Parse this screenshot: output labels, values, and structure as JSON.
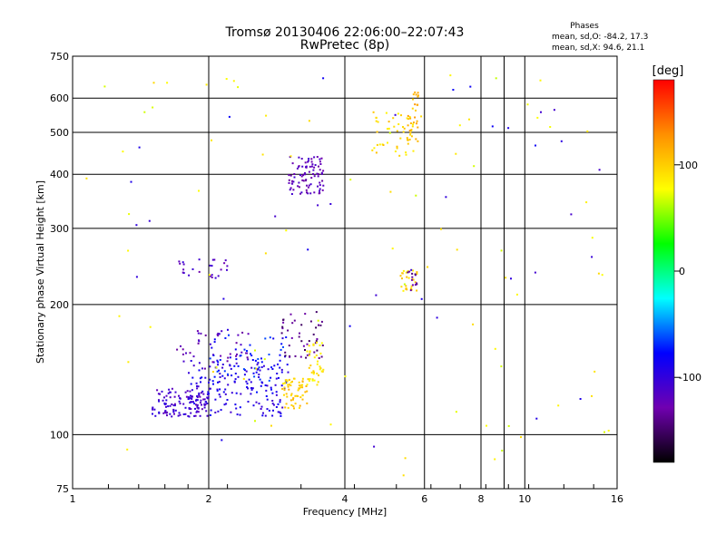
{
  "chart_data": {
    "type": "scatter",
    "title": "Tromsø 20130406 22:06:00–22:07:43",
    "subtitle": "RwPretec (8p)",
    "xlabel": "Frequency [MHz]",
    "ylabel": "Stationary phase Virtual Height [km]",
    "xscale": "log",
    "yscale": "log",
    "xlim": [
      1,
      16
    ],
    "ylim": [
      75,
      750
    ],
    "x_ticks": [
      "1",
      "2",
      "4",
      "6",
      "8",
      "10",
      "16"
    ],
    "y_ticks": [
      "75",
      "100",
      "200",
      "300",
      "400",
      "500",
      "600",
      "750"
    ],
    "grid": true,
    "phase_box": {
      "heading": "Phases",
      "line_o": "mean, sd,O: -84.2, 17.3",
      "line_x": "mean, sd,X:  94.6, 21.1"
    },
    "colorbar": {
      "label": "[deg]",
      "range": [
        -180,
        180
      ],
      "ticks": [
        "100",
        "0",
        "-100"
      ],
      "colors": [
        "#000000",
        "#7000b0",
        "#0000ff",
        "#00ffff",
        "#00ff00",
        "#ffff00",
        "#ff9000",
        "#ff0000"
      ]
    },
    "clusters": [
      {
        "f": [
          1.5,
          2.0
        ],
        "h": [
          110,
          128
        ],
        "phase": -110,
        "count": 120
      },
      {
        "f": [
          1.8,
          3.0
        ],
        "h": [
          110,
          150
        ],
        "phase": -95,
        "count": 160
      },
      {
        "f": [
          2.0,
          3.0
        ],
        "h": [
          125,
          170
        ],
        "phase": -75,
        "count": 60
      },
      {
        "f": [
          1.7,
          2.5
        ],
        "h": [
          140,
          175
        ],
        "phase": -120,
        "count": 40
      },
      {
        "f": [
          2.9,
          3.6
        ],
        "h": [
          150,
          195
        ],
        "phase": -140,
        "count": 45
      },
      {
        "f": [
          2.9,
          3.3
        ],
        "h": [
          115,
          135
        ],
        "phase": 100,
        "count": 60
      },
      {
        "f": [
          3.3,
          3.6
        ],
        "h": [
          130,
          165
        ],
        "phase": 90,
        "count": 40
      },
      {
        "f": [
          1.7,
          2.2
        ],
        "h": [
          230,
          255
        ],
        "phase": -115,
        "count": 25
      },
      {
        "f": [
          3.0,
          3.6
        ],
        "h": [
          360,
          440
        ],
        "phase": -120,
        "count": 90
      },
      {
        "f": [
          4.6,
          5.8
        ],
        "h": [
          440,
          560
        ],
        "phase": 95,
        "count": 45
      },
      {
        "f": [
          5.5,
          5.9
        ],
        "h": [
          470,
          620
        ],
        "phase": 110,
        "count": 30
      },
      {
        "f": [
          5.3,
          5.8
        ],
        "h": [
          215,
          240
        ],
        "phase": 95,
        "count": 25
      },
      {
        "f": [
          5.5,
          5.8
        ],
        "h": [
          215,
          240
        ],
        "phase": -130,
        "count": 12
      },
      {
        "f": [
          1.05,
          15.5
        ],
        "h": [
          80,
          700
        ],
        "phase": 80,
        "count": 80
      },
      {
        "f": [
          1.05,
          15.5
        ],
        "h": [
          80,
          700
        ],
        "phase": -95,
        "count": 40
      }
    ]
  }
}
